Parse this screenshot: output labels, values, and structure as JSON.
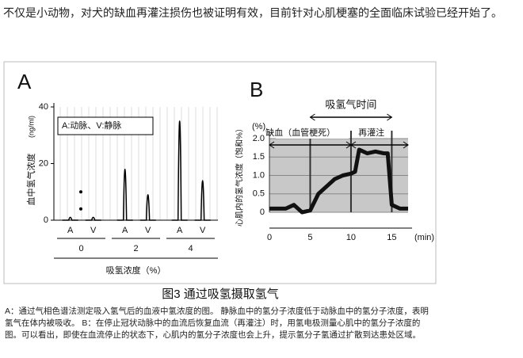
{
  "intro": "不仅是小动物，对犬的缺血再灌注损伤也被证明有效，目前针对心肌梗塞的全面临床试验已经开始了。",
  "figure": {
    "panel_a": {
      "label": "A",
      "y_label": "血中氢气浓度",
      "y_unit": "(ng/ml)",
      "ylim": [
        0,
        40
      ],
      "yticks": [
        0,
        20,
        40
      ],
      "legend": "A:动脉、V:静脉",
      "channels": [
        "A",
        "V"
      ],
      "groups": [
        {
          "label": "0",
          "values": [
            1,
            1
          ]
        },
        {
          "label": "2",
          "values": [
            18,
            9
          ]
        },
        {
          "label": "4",
          "values": [
            35,
            14
          ]
        }
      ],
      "x_label": "吸氢浓度（%）"
    },
    "panel_b": {
      "label": "B",
      "top_arrow": "吸氢气时间",
      "phases": [
        "缺血（血管梗死）",
        "再灌注"
      ],
      "y_unit": "(%)",
      "y_label": "心肌内的氢气浓度（饱和%）",
      "ylim": [
        0,
        2
      ],
      "yticks": [
        0,
        0.5,
        {
          "value": 1,
          "label": "1.0"
        },
        1.5,
        {
          "value": 2,
          "label": "2.0"
        }
      ],
      "xlim": [
        0,
        17
      ],
      "xticks": [
        0,
        5,
        10,
        15
      ],
      "x_unit": "(min)",
      "x": [
        0,
        2,
        3,
        4,
        5,
        6,
        7,
        8,
        9,
        10,
        10.5,
        11,
        12,
        13,
        14,
        14.5,
        15,
        16,
        17
      ],
      "y": [
        0.1,
        0.1,
        0.2,
        0,
        0.05,
        0.5,
        0.7,
        0.9,
        1.0,
        1.05,
        1.1,
        1.7,
        1.6,
        1.65,
        1.6,
        1.6,
        0.2,
        0.1,
        0.1
      ]
    },
    "caption": "图3   通过吸氢摄取氢气",
    "note": "A：通过气相色谱法测定吸入氢气后的血液中氢浓度的图。 静脉血中的氢分子浓度低于动脉血中的氢分子浓度，表明氢气在体内被吸收。 B：在停止冠状动脉中的血流后恢复血流（再灌注）时，用氢电极测量心肌中的氢分子浓度的图。可以看出，即使在血流停止的状态下，心肌内的氢分子浓度也会上升，提示氢分子氢通过扩散到达患处区域。"
  }
}
